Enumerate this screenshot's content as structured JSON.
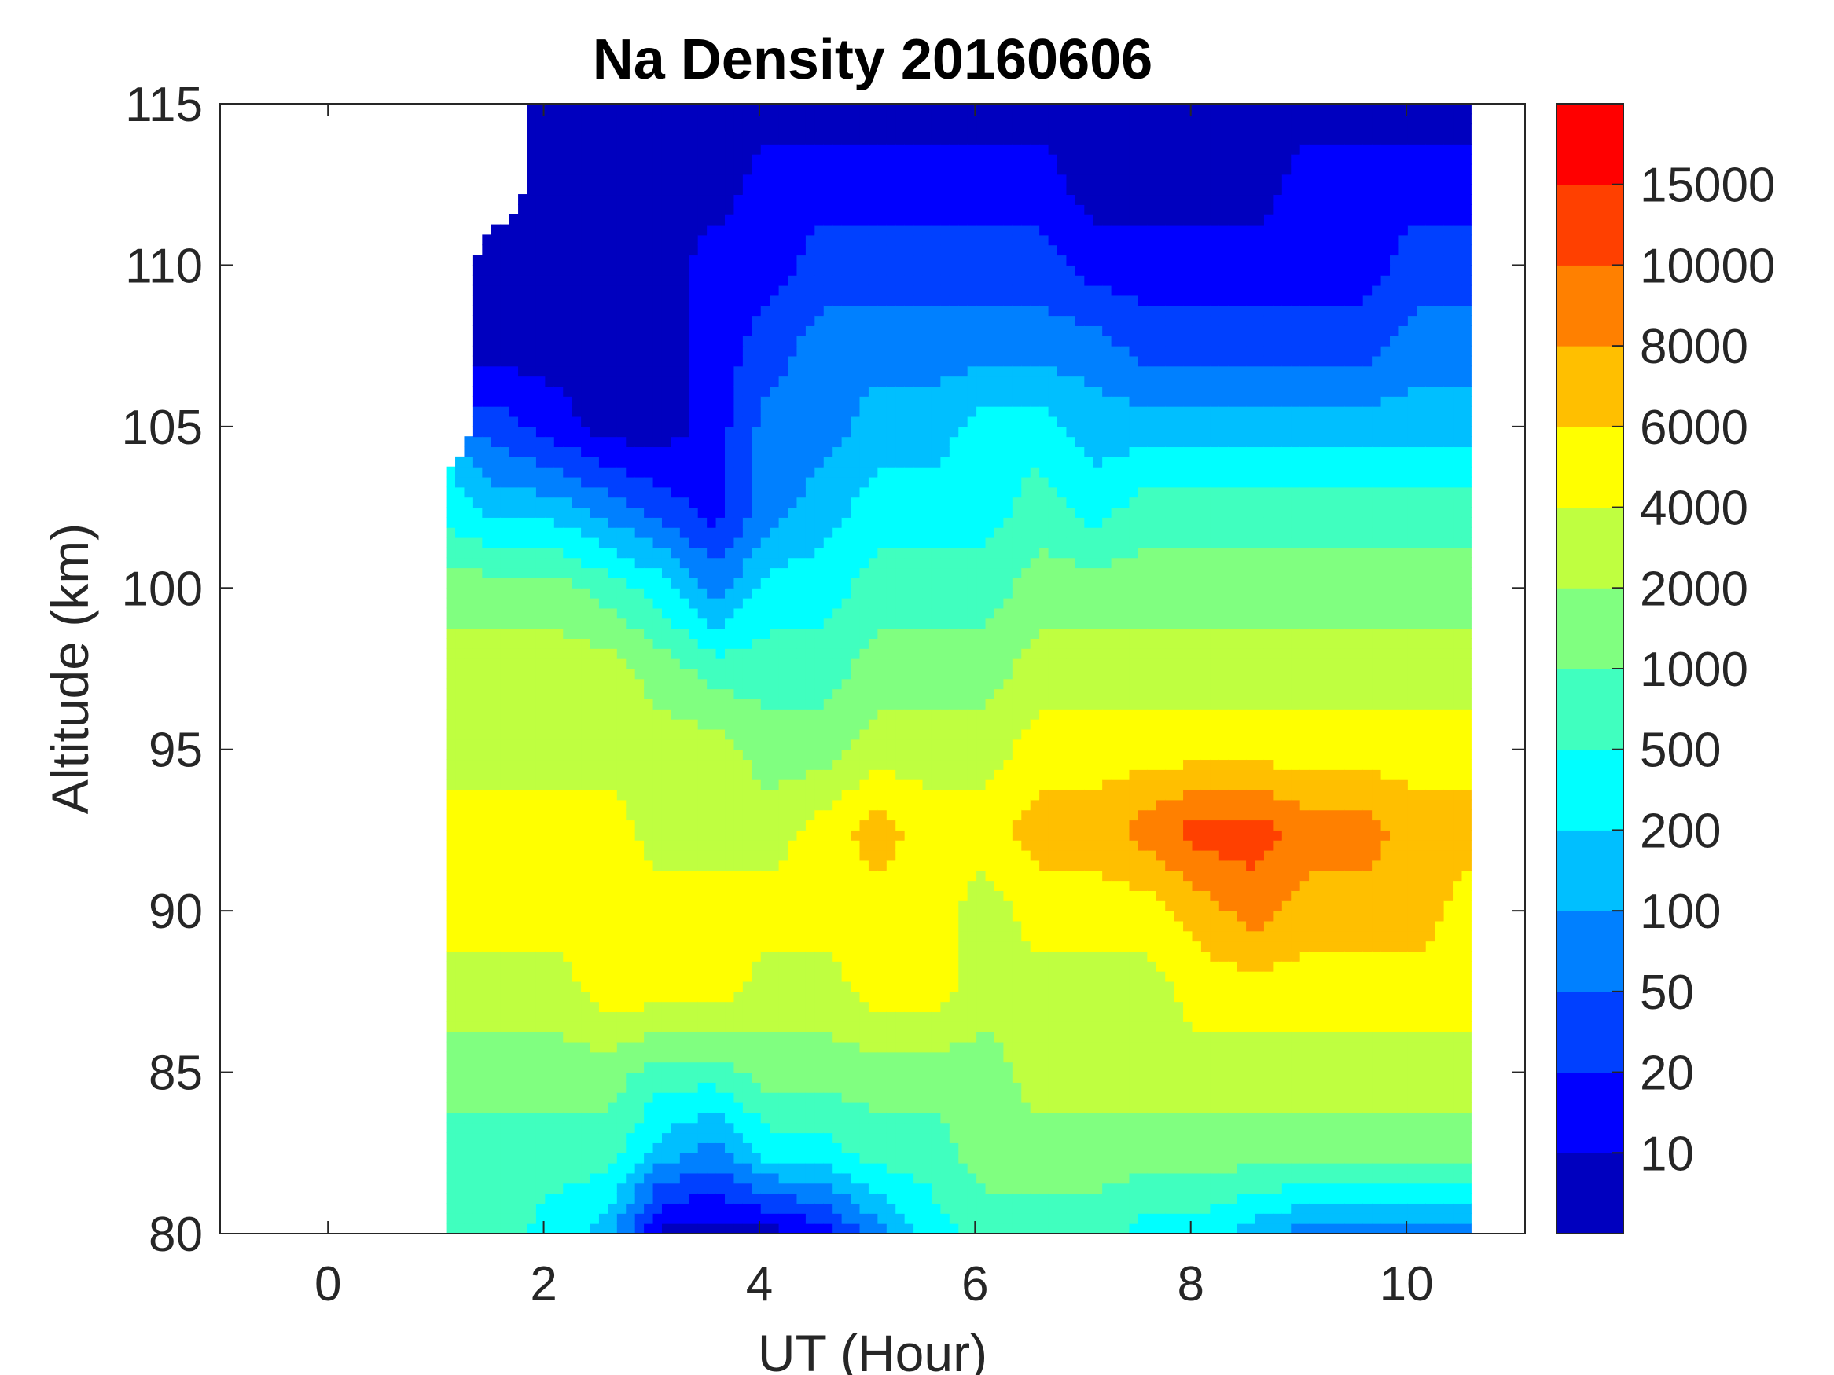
{
  "chart_data": {
    "type": "heatmap",
    "subtype": "filled-contour",
    "title": "Na Density 20160606",
    "xlabel": "UT (Hour)",
    "ylabel": "Altitude (km)",
    "xlim": [
      -1,
      11.1
    ],
    "ylim": [
      80,
      115
    ],
    "xticks": [
      "0",
      "2",
      "4",
      "6",
      "8",
      "10"
    ],
    "xtick_values": [
      0,
      2,
      4,
      6,
      8,
      10
    ],
    "yticks": [
      "80",
      "85",
      "90",
      "95",
      "100",
      "105",
      "110",
      "115"
    ],
    "ytick_values": [
      80,
      85,
      90,
      95,
      100,
      105,
      110,
      115
    ],
    "colorbar": {
      "tick_labels": [
        "10",
        "20",
        "50",
        "100",
        "200",
        "500",
        "1000",
        "2000",
        "4000",
        "6000",
        "8000",
        "10000",
        "15000"
      ],
      "band_colors": [
        "#0000bf",
        "#0000ff",
        "#0040ff",
        "#0080ff",
        "#00bfff",
        "#00ffff",
        "#40ffbf",
        "#80ff80",
        "#bfff40",
        "#ffff00",
        "#ffbf00",
        "#ff8000",
        "#ff4000",
        "#ff0000"
      ]
    },
    "grid": {
      "ut_hours": [
        1.1,
        1.6,
        2.1,
        2.6,
        3.1,
        3.6,
        4.1,
        4.6,
        5.1,
        5.6,
        6.1,
        6.6,
        7.1,
        7.6,
        8.1,
        8.6,
        9.1,
        9.6,
        10.1,
        10.6
      ],
      "altitudes_km": [
        80,
        82.5,
        85,
        87.5,
        90,
        92.5,
        95,
        97.5,
        100,
        102.5,
        105,
        107.5,
        110,
        112.5,
        115
      ],
      "band_index_by_column": [
        [
          6,
          6,
          7,
          8,
          9,
          9,
          8,
          8,
          7,
          5,
          null,
          null,
          null,
          null,
          null
        ],
        [
          6,
          6,
          7,
          8,
          9,
          9,
          8,
          8,
          7,
          4,
          2,
          0,
          0,
          null,
          null
        ],
        [
          5,
          6,
          7,
          8,
          9,
          9,
          8,
          8,
          7,
          4,
          1,
          0,
          0,
          0,
          0
        ],
        [
          4,
          6,
          7,
          9,
          9,
          9,
          8,
          8,
          6,
          3,
          0,
          0,
          0,
          0,
          0
        ],
        [
          0,
          4,
          6,
          9,
          9,
          8,
          8,
          7,
          5,
          2,
          0,
          0,
          0,
          0,
          0
        ],
        [
          0,
          3,
          6,
          9,
          9,
          8,
          8,
          6,
          3,
          1,
          1,
          1,
          1,
          0,
          0
        ],
        [
          0,
          5,
          7,
          8,
          9,
          8,
          7,
          6,
          5,
          3,
          3,
          2,
          1,
          1,
          0
        ],
        [
          1,
          5,
          7,
          8,
          9,
          9,
          7,
          6,
          5,
          4,
          3,
          3,
          2,
          1,
          0
        ],
        [
          3,
          6,
          7,
          9,
          9,
          10,
          8,
          7,
          6,
          5,
          4,
          3,
          2,
          1,
          0
        ],
        [
          5,
          6,
          7,
          9,
          9,
          9,
          8,
          7,
          6,
          5,
          4,
          3,
          2,
          1,
          0
        ],
        [
          6,
          7,
          7,
          8,
          8,
          9,
          8,
          7,
          6,
          5,
          5,
          3,
          2,
          1,
          0
        ],
        [
          6,
          7,
          8,
          8,
          9,
          10,
          9,
          8,
          7,
          6,
          5,
          3,
          2,
          1,
          0
        ],
        [
          6,
          7,
          8,
          8,
          9,
          10,
          9,
          8,
          7,
          5,
          4,
          3,
          1,
          0,
          0
        ],
        [
          5,
          7,
          8,
          8,
          9,
          11,
          9,
          8,
          7,
          6,
          4,
          2,
          1,
          0,
          0
        ],
        [
          5,
          7,
          8,
          9,
          10,
          12,
          9,
          8,
          7,
          6,
          4,
          2,
          1,
          0,
          0
        ],
        [
          4,
          7,
          8,
          9,
          11,
          12,
          9,
          8,
          7,
          6,
          4,
          2,
          1,
          0,
          0
        ],
        [
          3,
          7,
          8,
          9,
          10,
          11,
          9,
          8,
          7,
          6,
          4,
          2,
          1,
          1,
          0
        ],
        [
          3,
          7,
          8,
          9,
          10,
          11,
          9,
          8,
          7,
          6,
          4,
          2,
          1,
          1,
          0
        ],
        [
          3,
          7,
          8,
          9,
          10,
          10,
          9,
          8,
          7,
          6,
          4,
          3,
          2,
          1,
          0
        ],
        [
          3,
          7,
          8,
          9,
          9,
          10,
          9,
          8,
          7,
          6,
          4,
          3,
          2,
          1,
          0
        ]
      ]
    }
  }
}
